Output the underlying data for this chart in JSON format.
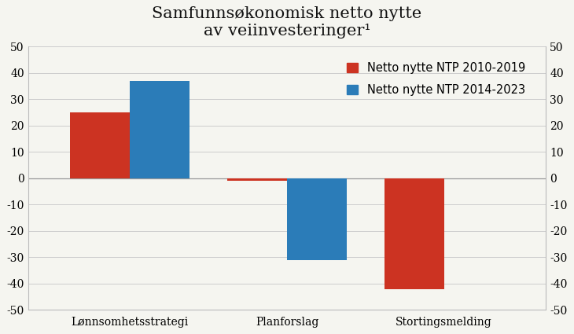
{
  "title_line1": "Samfunnsøkonomisk netto nytte",
  "title_line2": "av veiinvesteringer¹",
  "categories": [
    "Lønnsomhetsstrategi",
    "Planforslag",
    "Stortingsmelding"
  ],
  "series": [
    {
      "label": "Netto nytte NTP 2010-2019",
      "color": "#cc3322",
      "values": [
        25,
        -1,
        -42
      ]
    },
    {
      "label": "Netto nytte NTP 2014-2023",
      "color": "#2b7cb8",
      "values": [
        37,
        -31,
        null
      ]
    }
  ],
  "ylim": [
    -50,
    50
  ],
  "yticks": [
    -50,
    -40,
    -30,
    -20,
    -10,
    0,
    10,
    20,
    30,
    40,
    50
  ],
  "bar_width": 0.38,
  "background_color": "#f5f5f0",
  "title_fontsize": 15,
  "tick_fontsize": 10,
  "legend_fontsize": 10.5
}
